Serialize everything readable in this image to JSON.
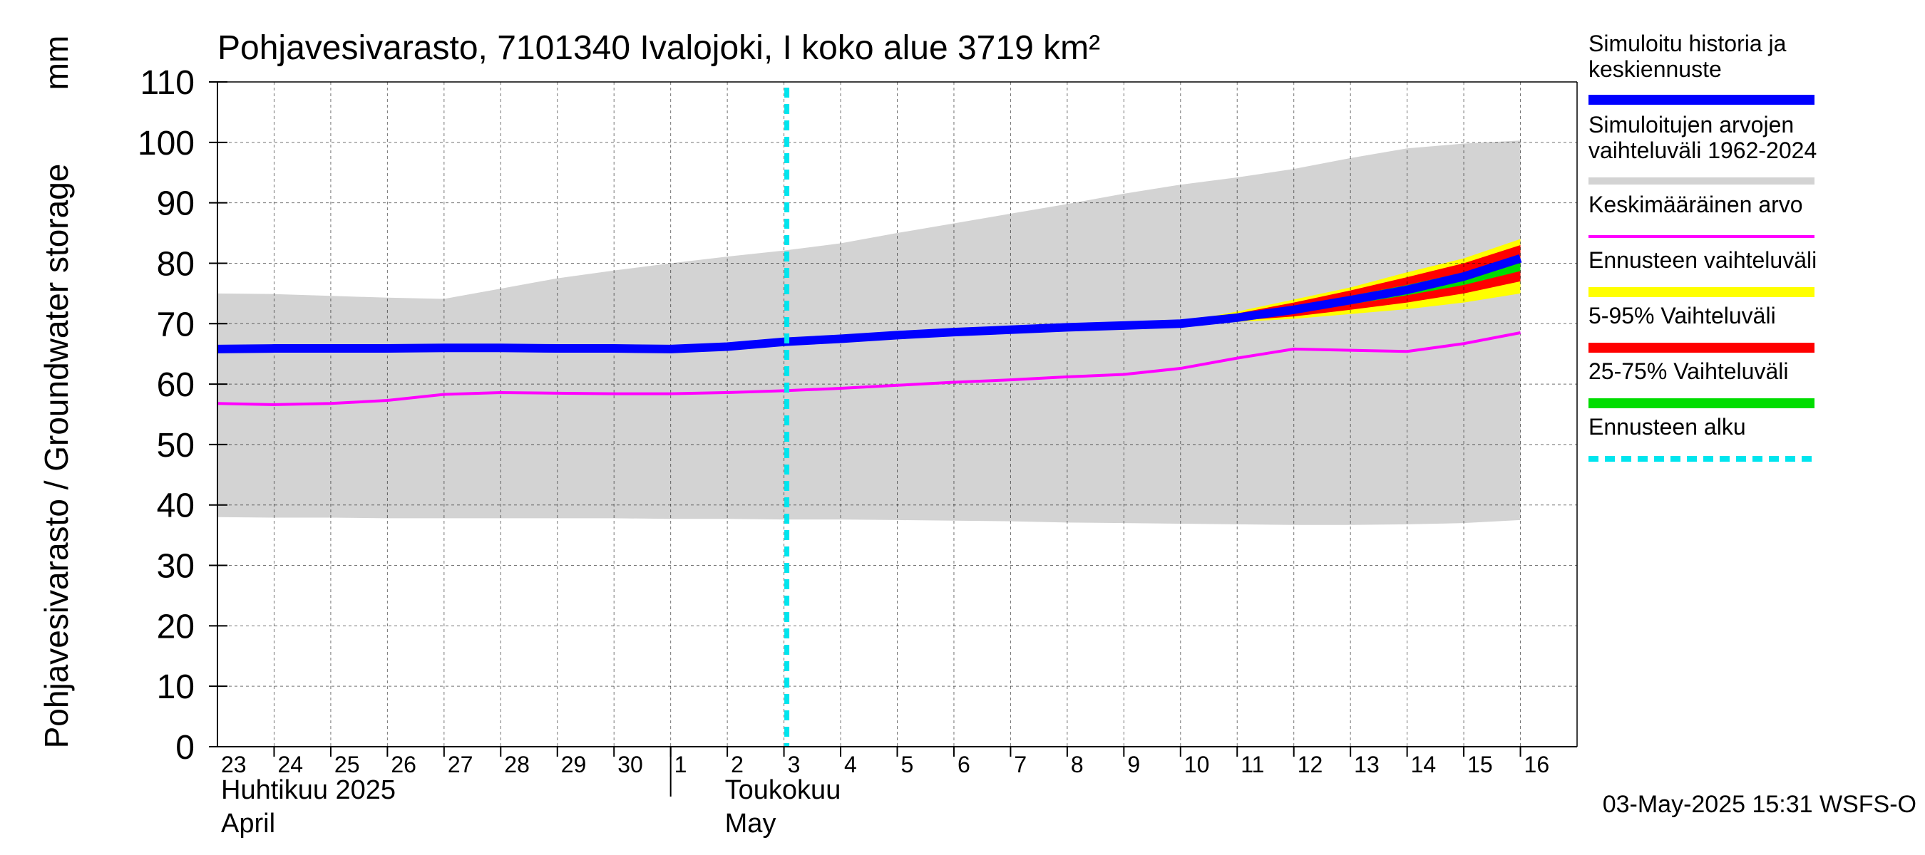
{
  "chart_data": {
    "type": "line",
    "title": "Pohjavesivarasto, 7101340 Ivalojoki, I koko alue 3719 km²",
    "ylabel": "Pohjavesivarasto / Groundwater storage",
    "yunit": "mm",
    "ylim": [
      0,
      110
    ],
    "yticks": [
      0,
      10,
      20,
      30,
      40,
      50,
      60,
      70,
      80,
      90,
      100,
      110
    ],
    "x_start": "2025-04-23",
    "x_end": "2025-05-16",
    "x_tick_labels": [
      "23",
      "24",
      "25",
      "26",
      "27",
      "28",
      "29",
      "30",
      "1",
      "2",
      "3",
      "4",
      "5",
      "6",
      "7",
      "8",
      "9",
      "10",
      "11",
      "12",
      "13",
      "14",
      "15",
      "16"
    ],
    "month_labels": [
      {
        "fi": "Huhtikuu  2025",
        "en": "April"
      },
      {
        "fi": "Toukokuu",
        "en": "May"
      }
    ],
    "grid": true,
    "legend_position": "right",
    "forecast_start": "2025-05-03",
    "timestamp": "03-May-2025 15:31 WSFS-O",
    "x": [
      "2025-04-23",
      "2025-04-24",
      "2025-04-25",
      "2025-04-26",
      "2025-04-27",
      "2025-04-28",
      "2025-04-29",
      "2025-04-30",
      "2025-05-01",
      "2025-05-02",
      "2025-05-03",
      "2025-05-04",
      "2025-05-05",
      "2025-05-06",
      "2025-05-07",
      "2025-05-08",
      "2025-05-09",
      "2025-05-10",
      "2025-05-11",
      "2025-05-12",
      "2025-05-13",
      "2025-05-14",
      "2025-05-15",
      "2025-05-16"
    ],
    "series": [
      {
        "name": "Simuloitujen arvojen vaihteluväli 1962-2024",
        "role": "band",
        "color": "#d3d3d3",
        "upper": [
          75.0,
          74.9,
          74.6,
          74.3,
          74.1,
          75.8,
          77.5,
          78.8,
          80.0,
          81.1,
          82.1,
          83.3,
          85.0,
          86.6,
          88.2,
          89.8,
          91.5,
          93.0,
          94.2,
          95.6,
          97.4,
          99.0,
          99.8,
          100.3
        ],
        "lower": [
          38.0,
          37.9,
          37.9,
          37.8,
          37.8,
          37.8,
          37.8,
          37.8,
          37.7,
          37.7,
          37.6,
          37.6,
          37.5,
          37.4,
          37.3,
          37.1,
          37.0,
          36.9,
          36.8,
          36.7,
          36.7,
          36.8,
          37.0,
          37.5
        ]
      },
      {
        "name": "Ennusteen vaihteluväli",
        "role": "band",
        "color": "#ffff00",
        "upper": [
          null,
          null,
          null,
          null,
          null,
          null,
          null,
          null,
          null,
          null,
          null,
          null,
          null,
          null,
          null,
          null,
          null,
          70.3,
          72.0,
          74.0,
          76.0,
          78.5,
          80.8,
          84.0
        ],
        "lower": [
          null,
          null,
          null,
          null,
          null,
          null,
          null,
          null,
          null,
          null,
          null,
          null,
          null,
          null,
          null,
          null,
          null,
          70.0,
          70.3,
          70.8,
          71.6,
          72.4,
          73.5,
          75.0
        ]
      },
      {
        "name": "5-95% Vaihteluväli",
        "role": "band",
        "color": "#ff0000",
        "upper": [
          null,
          null,
          null,
          null,
          null,
          null,
          null,
          null,
          null,
          null,
          null,
          null,
          null,
          null,
          null,
          null,
          null,
          70.2,
          71.7,
          73.5,
          75.5,
          77.7,
          80.0,
          83.0
        ],
        "lower": [
          null,
          null,
          null,
          null,
          null,
          null,
          null,
          null,
          null,
          null,
          null,
          null,
          null,
          null,
          null,
          null,
          null,
          70.0,
          70.5,
          71.2,
          72.3,
          73.5,
          75.0,
          77.0
        ]
      },
      {
        "name": "25-75% Vaihteluväli",
        "role": "band",
        "color": "#00dd00",
        "upper": [
          null,
          null,
          null,
          null,
          null,
          null,
          null,
          null,
          null,
          null,
          null,
          null,
          null,
          null,
          null,
          null,
          null,
          70.1,
          71.3,
          72.8,
          74.6,
          76.4,
          78.5,
          80.9
        ],
        "lower": [
          null,
          null,
          null,
          null,
          null,
          null,
          null,
          null,
          null,
          null,
          null,
          null,
          null,
          null,
          null,
          null,
          null,
          70.0,
          70.8,
          71.8,
          73.2,
          74.7,
          76.4,
          78.7
        ]
      },
      {
        "name": "Keskimääräinen arvo",
        "role": "line",
        "color": "#ff00ff",
        "values": [
          56.8,
          56.6,
          56.8,
          57.3,
          58.3,
          58.6,
          58.5,
          58.4,
          58.4,
          58.6,
          58.9,
          59.3,
          59.8,
          60.3,
          60.7,
          61.2,
          61.6,
          62.6,
          64.3,
          65.8,
          65.6,
          65.4,
          66.7,
          68.5
        ]
      },
      {
        "name": "Simuloitu historia ja keskiennuste",
        "role": "line",
        "color": "#0000ff",
        "values": [
          65.8,
          65.9,
          65.9,
          65.9,
          66.0,
          66.0,
          65.9,
          65.9,
          65.8,
          66.2,
          67.0,
          67.5,
          68.1,
          68.6,
          69.0,
          69.4,
          69.7,
          70.0,
          71.0,
          72.3,
          73.9,
          75.6,
          77.8,
          80.8
        ]
      }
    ],
    "legend": [
      {
        "label": "Simuloitu historia ja keskiennuste",
        "color": "#0000ff",
        "style": "solid"
      },
      {
        "label": "Simuloitujen arvojen vaihteluväli 1962-2024",
        "color": "#d3d3d3",
        "style": "solid"
      },
      {
        "label": "Keskimääräinen arvo",
        "color": "#ff00ff",
        "style": "solid"
      },
      {
        "label": "Ennusteen vaihteluväli",
        "color": "#ffff00",
        "style": "solid"
      },
      {
        "label": "5-95% Vaihteluväli",
        "color": "#ff0000",
        "style": "solid"
      },
      {
        "label": "25-75% Vaihteluväli",
        "color": "#00dd00",
        "style": "solid"
      },
      {
        "label": "Ennusteen alku",
        "color": "#00e5ee",
        "style": "dashed"
      }
    ]
  }
}
